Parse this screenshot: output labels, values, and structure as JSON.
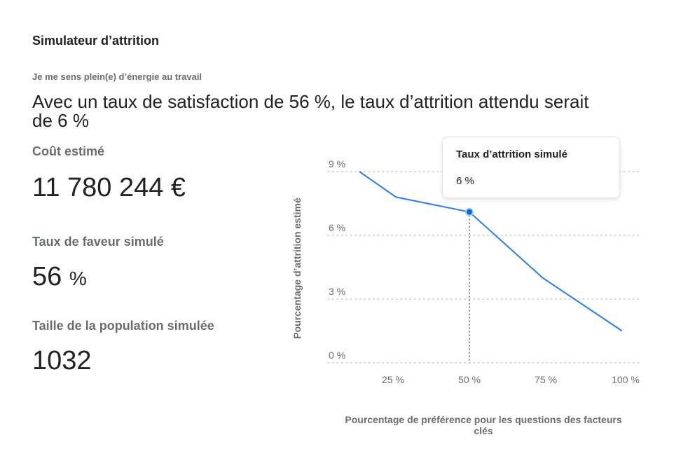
{
  "title": "Simulateur d’attrition",
  "question": "Je me sens plein(e) d’énergie au travail",
  "headline": "Avec un taux de satisfaction de 56 %, le taux d’attrition attendu serait de 6 %",
  "metrics": {
    "cost_label": "Coût estimé",
    "cost_value": "11 780 244 €",
    "favor_label": "Taux de faveur simulé",
    "favor_value": "56",
    "favor_unit": "%",
    "population_label": "Taille de la population simulée",
    "population_value": "1032"
  },
  "tooltip": {
    "title": "Taux d’attrition simulé",
    "value": "6 %"
  },
  "colors": {
    "line": "#2b7de9",
    "point": "#0a6ed1",
    "grid": "#d9d9d9"
  },
  "chart_data": {
    "type": "line",
    "xlabel": "Pourcentage de préférence pour les questions des facteurs clés",
    "ylabel": "Pourcentage d’attrition estimé",
    "x": [
      14,
      26,
      50,
      74,
      100
    ],
    "series": [
      {
        "name": "Taux d’attrition",
        "values": [
          9.0,
          7.8,
          7.1,
          4.0,
          1.5
        ]
      }
    ],
    "xticks": [
      {
        "v": 25,
        "label": "25 %"
      },
      {
        "v": 50,
        "label": "50 %"
      },
      {
        "v": 75,
        "label": "75 %"
      },
      {
        "v": 100,
        "label": "100 %"
      }
    ],
    "yticks": [
      {
        "v": 0,
        "label": "0 %"
      },
      {
        "v": 3,
        "label": "3 %"
      },
      {
        "v": 6,
        "label": "6 %"
      },
      {
        "v": 9,
        "label": "9 %"
      }
    ],
    "ylim": [
      0,
      9
    ],
    "highlight_x": 50,
    "grid": true
  }
}
